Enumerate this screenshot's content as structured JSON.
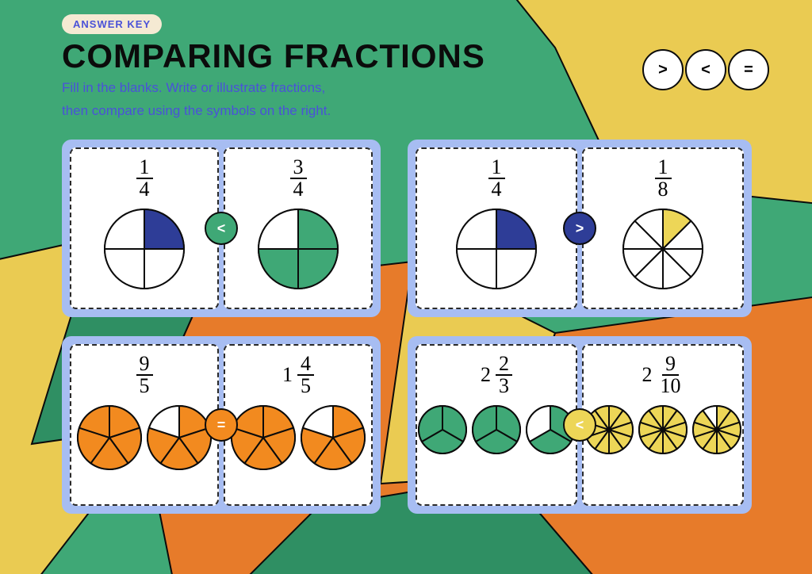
{
  "badge": "ANSWER KEY",
  "title": "COMPARING FRACTIONS",
  "instructions_l1": "Fill in the blanks. Write or illustrate fractions,",
  "instructions_l2": "then compare using the symbols on the right.",
  "legend": {
    "gt": ">",
    "lt": "<",
    "eq": "="
  },
  "colors": {
    "green": "#3fa876",
    "blue": "#2e3d97",
    "orange": "#f28a1f",
    "yellow": "#edd657",
    "darkyellow": "#e8c94b",
    "panel": "#a7bdf2",
    "stroke": "#0b0b0b",
    "white": "#ffffff",
    "bg_yellow": "#eacb52",
    "bg_orange": "#e77b2a",
    "bg_green2": "#2f8f63"
  },
  "problems": [
    {
      "left": {
        "num": "1",
        "den": "4",
        "pies": [
          {
            "slices": 4,
            "filled": 1,
            "color": "#2e3d97",
            "r": 50
          }
        ]
      },
      "right": {
        "num": "3",
        "den": "4",
        "pies": [
          {
            "slices": 4,
            "filled": 3,
            "color": "#3fa876",
            "r": 50
          }
        ]
      },
      "cmp": "<",
      "cmp_bg": "#3fa876"
    },
    {
      "left": {
        "num": "1",
        "den": "4",
        "pies": [
          {
            "slices": 4,
            "filled": 1,
            "color": "#2e3d97",
            "r": 50
          }
        ]
      },
      "right": {
        "num": "1",
        "den": "8",
        "pies": [
          {
            "slices": 8,
            "filled": 1,
            "color": "#edd657",
            "r": 50
          }
        ]
      },
      "cmp": ">",
      "cmp_bg": "#2e3d97"
    },
    {
      "left": {
        "num": "9",
        "den": "5",
        "pies": [
          {
            "slices": 5,
            "filled": 5,
            "color": "#f28a1f",
            "r": 40
          },
          {
            "slices": 5,
            "filled": 4,
            "color": "#f28a1f",
            "r": 40
          }
        ]
      },
      "right": {
        "whole": "1",
        "num": "4",
        "den": "5",
        "pies": [
          {
            "slices": 5,
            "filled": 5,
            "color": "#f28a1f",
            "r": 40
          },
          {
            "slices": 5,
            "filled": 4,
            "color": "#f28a1f",
            "r": 40
          }
        ]
      },
      "cmp": "=",
      "cmp_bg": "#f28a1f"
    },
    {
      "left": {
        "whole": "2",
        "num": "2",
        "den": "3",
        "pies": [
          {
            "slices": 3,
            "filled": 3,
            "color": "#3fa876",
            "r": 30
          },
          {
            "slices": 3,
            "filled": 3,
            "color": "#3fa876",
            "r": 30
          },
          {
            "slices": 3,
            "filled": 2,
            "color": "#3fa876",
            "r": 30
          }
        ]
      },
      "right": {
        "whole": "2",
        "num": "9",
        "den": "10",
        "pies": [
          {
            "slices": 10,
            "filled": 10,
            "color": "#edd657",
            "r": 30
          },
          {
            "slices": 10,
            "filled": 10,
            "color": "#edd657",
            "r": 30
          },
          {
            "slices": 10,
            "filled": 9,
            "color": "#edd657",
            "r": 30
          }
        ]
      },
      "cmp": "<",
      "cmp_bg": "#edd657"
    }
  ]
}
